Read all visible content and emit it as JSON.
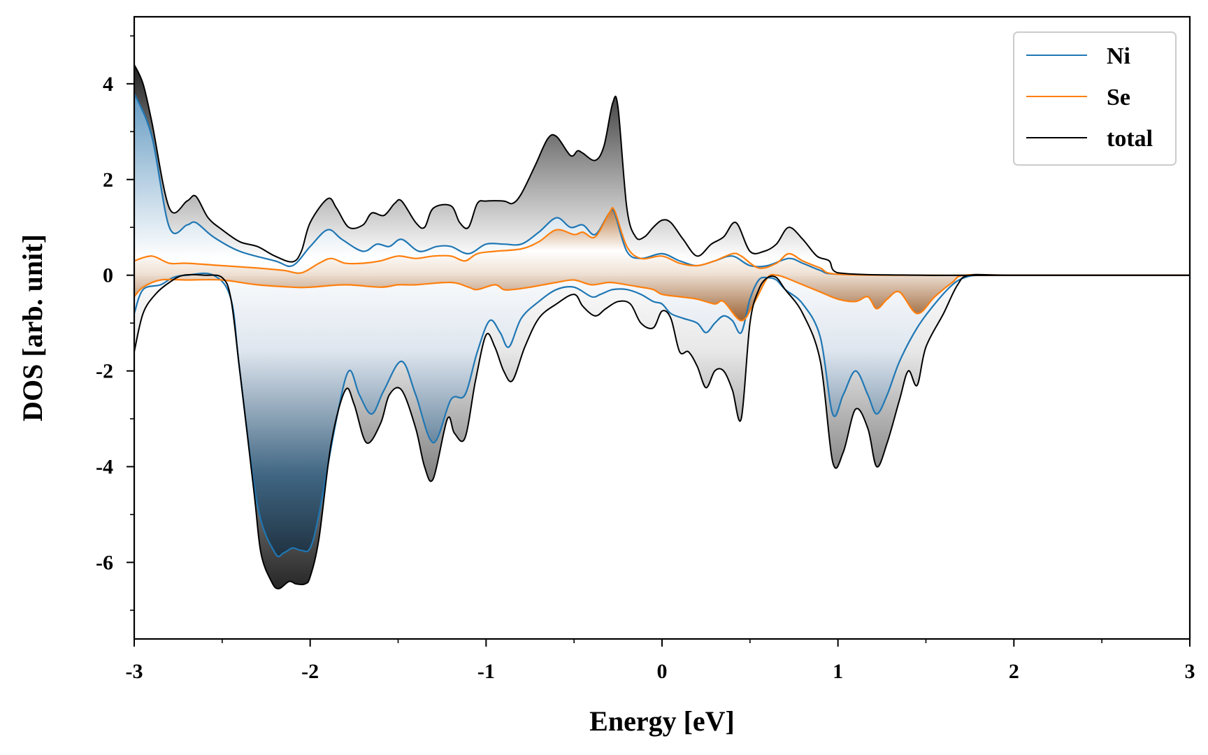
{
  "chart_data": {
    "type": "area",
    "xlabel": "Energy [eV]",
    "ylabel": "DOS [arb. unit]",
    "xlim": [
      -3,
      3
    ],
    "ylim": [
      -7.6,
      5.4
    ],
    "xticks": [
      -3,
      -2,
      -1,
      0,
      1,
      2,
      3
    ],
    "xtick_labels": [
      "-3",
      "-2",
      "-1",
      "0",
      "1",
      "2",
      "3"
    ],
    "yticks": [
      -6,
      -4,
      -2,
      0,
      2,
      4
    ],
    "ytick_labels": [
      "-6",
      "-4",
      "-2",
      "0",
      "2",
      "4"
    ],
    "grid": false,
    "legend_position": "top-right",
    "fill": "vertical gradient (dark at extremes, white at zero)",
    "series": [
      {
        "name": "Ni",
        "color": "#1f77b4",
        "up": {
          "x": [
            -3.0,
            -2.9,
            -2.8,
            -2.7,
            -2.65,
            -2.55,
            -2.4,
            -2.2,
            -2.1,
            -2.0,
            -1.9,
            -1.82,
            -1.7,
            -1.62,
            -1.55,
            -1.48,
            -1.38,
            -1.28,
            -1.2,
            -1.1,
            -1.0,
            -0.9,
            -0.8,
            -0.7,
            -0.6,
            -0.52,
            -0.45,
            -0.38,
            -0.3,
            -0.27,
            -0.2,
            -0.12,
            0.0,
            0.1,
            0.2,
            0.3,
            0.4,
            0.5,
            0.6,
            0.72,
            0.8,
            0.9,
            1.0,
            1.5,
            2.0,
            3.0
          ],
          "y": [
            3.8,
            2.9,
            1.0,
            1.05,
            1.1,
            0.8,
            0.5,
            0.3,
            0.2,
            0.6,
            0.95,
            0.75,
            0.5,
            0.65,
            0.6,
            0.75,
            0.5,
            0.6,
            0.6,
            0.45,
            0.65,
            0.65,
            0.65,
            0.9,
            1.2,
            1.0,
            1.05,
            0.85,
            1.3,
            1.3,
            0.5,
            0.35,
            0.45,
            0.3,
            0.2,
            0.3,
            0.4,
            0.2,
            0.2,
            0.35,
            0.25,
            0.1,
            0.02,
            0.0,
            0.0,
            0.0
          ]
        },
        "down": {
          "x": [
            -3.0,
            -2.95,
            -2.85,
            -2.78,
            -2.7,
            -2.55,
            -2.45,
            -2.4,
            -2.3,
            -2.2,
            -2.15,
            -2.1,
            -2.05,
            -2.0,
            -1.95,
            -1.85,
            -1.78,
            -1.72,
            -1.65,
            -1.58,
            -1.48,
            -1.4,
            -1.3,
            -1.2,
            -1.12,
            -1.05,
            -0.98,
            -0.92,
            -0.87,
            -0.8,
            -0.7,
            -0.6,
            -0.5,
            -0.4,
            -0.35,
            -0.28,
            -0.2,
            -0.12,
            -0.05,
            0.0,
            0.05,
            0.12,
            0.2,
            0.25,
            0.3,
            0.35,
            0.4,
            0.45,
            0.5,
            0.55,
            0.6,
            0.65,
            0.7,
            0.8,
            0.9,
            0.97,
            1.03,
            1.1,
            1.17,
            1.22,
            1.28,
            1.35,
            1.45,
            1.55,
            1.65,
            1.72,
            1.8,
            2.0,
            3.0
          ],
          "y": [
            -0.8,
            -0.3,
            -0.2,
            -0.05,
            0.0,
            0.0,
            -0.5,
            -2.0,
            -4.8,
            -5.8,
            -5.8,
            -5.7,
            -5.75,
            -5.7,
            -5.0,
            -3.0,
            -2.0,
            -2.5,
            -2.9,
            -2.4,
            -1.8,
            -2.5,
            -3.5,
            -2.6,
            -2.5,
            -1.6,
            -0.95,
            -1.2,
            -1.5,
            -0.9,
            -0.55,
            -0.3,
            -0.25,
            -0.45,
            -0.4,
            -0.3,
            -0.3,
            -0.4,
            -0.55,
            -0.6,
            -0.8,
            -0.9,
            -1.0,
            -1.2,
            -1.0,
            -0.85,
            -0.95,
            -1.2,
            -0.5,
            -0.1,
            -0.05,
            -0.1,
            -0.3,
            -0.6,
            -1.3,
            -2.9,
            -2.5,
            -2.0,
            -2.5,
            -2.9,
            -2.5,
            -1.8,
            -1.1,
            -0.6,
            -0.2,
            -0.05,
            0.0,
            0.0,
            0.0
          ]
        }
      },
      {
        "name": "Se",
        "color": "#ff7f0e",
        "up": {
          "x": [
            -3.0,
            -2.9,
            -2.8,
            -2.7,
            -2.5,
            -2.3,
            -2.15,
            -2.05,
            -1.95,
            -1.88,
            -1.8,
            -1.7,
            -1.6,
            -1.5,
            -1.4,
            -1.3,
            -1.2,
            -1.12,
            -1.05,
            -0.95,
            -0.8,
            -0.7,
            -0.6,
            -0.5,
            -0.45,
            -0.38,
            -0.3,
            -0.27,
            -0.2,
            -0.12,
            0.0,
            0.1,
            0.2,
            0.3,
            0.4,
            0.45,
            0.55,
            0.65,
            0.72,
            0.8,
            0.9,
            1.0,
            1.5,
            2.0,
            3.0
          ],
          "y": [
            0.3,
            0.4,
            0.25,
            0.25,
            0.2,
            0.15,
            0.1,
            0.05,
            0.25,
            0.35,
            0.25,
            0.25,
            0.3,
            0.4,
            0.35,
            0.4,
            0.4,
            0.3,
            0.45,
            0.5,
            0.55,
            0.7,
            0.95,
            0.85,
            0.9,
            0.8,
            1.3,
            1.35,
            0.6,
            0.35,
            0.4,
            0.25,
            0.2,
            0.3,
            0.45,
            0.4,
            0.15,
            0.25,
            0.45,
            0.3,
            0.15,
            0.02,
            0.0,
            0.0,
            0.0
          ]
        },
        "down": {
          "x": [
            -3.0,
            -2.95,
            -2.85,
            -2.7,
            -2.5,
            -2.3,
            -2.1,
            -2.0,
            -1.8,
            -1.6,
            -1.5,
            -1.4,
            -1.2,
            -1.1,
            -1.05,
            -0.95,
            -0.9,
            -0.85,
            -0.75,
            -0.6,
            -0.5,
            -0.4,
            -0.3,
            -0.2,
            -0.12,
            -0.05,
            0.0,
            0.1,
            0.2,
            0.3,
            0.35,
            0.45,
            0.52,
            0.6,
            0.65,
            0.7,
            0.8,
            0.9,
            1.0,
            1.1,
            1.17,
            1.22,
            1.28,
            1.35,
            1.45,
            1.55,
            1.65,
            1.72,
            2.0,
            3.0
          ],
          "y": [
            -0.45,
            -0.25,
            -0.1,
            -0.1,
            -0.1,
            -0.2,
            -0.25,
            -0.25,
            -0.2,
            -0.25,
            -0.2,
            -0.2,
            -0.15,
            -0.25,
            -0.3,
            -0.2,
            -0.3,
            -0.3,
            -0.25,
            -0.15,
            -0.1,
            -0.2,
            -0.15,
            -0.2,
            -0.25,
            -0.3,
            -0.4,
            -0.45,
            -0.5,
            -0.6,
            -0.55,
            -0.95,
            -0.6,
            -0.05,
            0.0,
            -0.05,
            -0.2,
            -0.35,
            -0.5,
            -0.55,
            -0.45,
            -0.7,
            -0.5,
            -0.35,
            -0.8,
            -0.45,
            -0.15,
            0.0,
            0.0,
            0.0
          ]
        }
      },
      {
        "name": "total",
        "color": "#000000",
        "up": {
          "x": [
            -3.0,
            -2.95,
            -2.9,
            -2.8,
            -2.7,
            -2.65,
            -2.58,
            -2.5,
            -2.4,
            -2.3,
            -2.2,
            -2.1,
            -2.05,
            -2.0,
            -1.9,
            -1.85,
            -1.78,
            -1.7,
            -1.65,
            -1.58,
            -1.52,
            -1.48,
            -1.4,
            -1.35,
            -1.3,
            -1.2,
            -1.15,
            -1.1,
            -1.05,
            -1.0,
            -0.9,
            -0.85,
            -0.8,
            -0.72,
            -0.65,
            -0.6,
            -0.52,
            -0.48,
            -0.45,
            -0.38,
            -0.33,
            -0.28,
            -0.25,
            -0.2,
            -0.15,
            -0.1,
            -0.05,
            0.0,
            0.05,
            0.12,
            0.2,
            0.28,
            0.35,
            0.42,
            0.5,
            0.58,
            0.65,
            0.72,
            0.8,
            0.88,
            0.95,
            1.0,
            1.5,
            2.0,
            3.0
          ],
          "y": [
            4.4,
            4.0,
            3.2,
            1.4,
            1.55,
            1.65,
            1.2,
            0.95,
            0.7,
            0.6,
            0.4,
            0.28,
            0.5,
            1.1,
            1.6,
            1.4,
            1.0,
            1.05,
            1.3,
            1.25,
            1.5,
            1.55,
            1.1,
            1.0,
            1.4,
            1.45,
            1.1,
            1.0,
            1.5,
            1.55,
            1.55,
            1.5,
            1.7,
            2.3,
            2.85,
            2.9,
            2.5,
            2.6,
            2.55,
            2.4,
            2.7,
            3.6,
            3.5,
            1.4,
            0.8,
            0.8,
            1.0,
            1.15,
            1.1,
            0.75,
            0.4,
            0.65,
            0.8,
            1.1,
            0.5,
            0.5,
            0.65,
            1.0,
            0.75,
            0.4,
            0.3,
            0.05,
            0.0,
            0.0,
            0.0
          ]
        },
        "down": {
          "x": [
            -3.0,
            -2.95,
            -2.88,
            -2.8,
            -2.72,
            -2.6,
            -2.5,
            -2.45,
            -2.4,
            -2.32,
            -2.28,
            -2.22,
            -2.18,
            -2.12,
            -2.08,
            -2.03,
            -2.0,
            -1.95,
            -1.88,
            -1.8,
            -1.75,
            -1.68,
            -1.6,
            -1.55,
            -1.48,
            -1.4,
            -1.35,
            -1.3,
            -1.22,
            -1.18,
            -1.12,
            -1.06,
            -1.0,
            -0.95,
            -0.9,
            -0.85,
            -0.78,
            -0.7,
            -0.6,
            -0.5,
            -0.45,
            -0.38,
            -0.32,
            -0.25,
            -0.18,
            -0.12,
            -0.05,
            0.0,
            0.05,
            0.1,
            0.15,
            0.2,
            0.25,
            0.3,
            0.35,
            0.4,
            0.45,
            0.5,
            0.55,
            0.6,
            0.65,
            0.7,
            0.8,
            0.9,
            0.97,
            1.03,
            1.1,
            1.17,
            1.22,
            1.28,
            1.35,
            1.4,
            1.45,
            1.5,
            1.6,
            1.68,
            1.75,
            2.0,
            3.0
          ],
          "y": [
            -1.6,
            -0.8,
            -0.4,
            -0.15,
            0.0,
            0.0,
            -0.05,
            -0.5,
            -2.0,
            -4.5,
            -5.8,
            -6.4,
            -6.55,
            -6.4,
            -6.45,
            -6.45,
            -6.3,
            -5.5,
            -3.5,
            -2.4,
            -2.7,
            -3.5,
            -3.1,
            -2.5,
            -2.4,
            -3.2,
            -4.0,
            -4.25,
            -3.0,
            -3.3,
            -3.4,
            -2.2,
            -1.25,
            -1.5,
            -2.0,
            -2.2,
            -1.5,
            -0.9,
            -0.6,
            -0.4,
            -0.65,
            -0.85,
            -0.7,
            -0.55,
            -0.6,
            -1.0,
            -1.1,
            -0.75,
            -0.9,
            -1.6,
            -1.6,
            -1.9,
            -2.35,
            -2.0,
            -2.0,
            -2.4,
            -3.0,
            -1.0,
            -0.3,
            -0.05,
            -0.05,
            -0.3,
            -0.8,
            -1.8,
            -3.9,
            -3.7,
            -2.8,
            -3.2,
            -4.0,
            -3.5,
            -2.6,
            -2.0,
            -2.3,
            -1.5,
            -0.8,
            -0.2,
            0.0,
            0.0,
            0.0
          ]
        }
      }
    ]
  }
}
